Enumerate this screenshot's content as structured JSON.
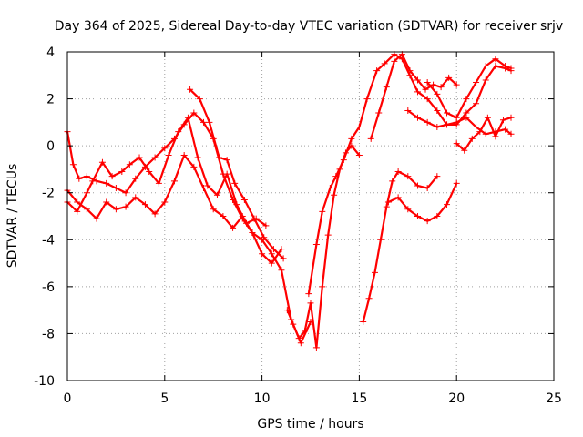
{
  "chart_data": {
    "type": "scatter",
    "title": "Day 364 of 2025, Sidereal Day-to-day VTEC variation (SDTVAR) for receiver srjv",
    "xlabel": "GPS time / hours",
    "ylabel": "SDTVAR / TECUs",
    "xlim": [
      0,
      25
    ],
    "ylim": [
      -10,
      4
    ],
    "xticks": [
      0,
      5,
      10,
      15,
      20,
      25
    ],
    "yticks": [
      -10,
      -8,
      -6,
      -4,
      -2,
      0,
      2,
      4
    ],
    "grid": true,
    "marker": "+",
    "color": "#ff0000",
    "series": [
      {
        "x": [
          0.0,
          0.3,
          0.6,
          1.0,
          1.5,
          2.0,
          2.5,
          3.0,
          3.5,
          4.0,
          4.5,
          5.0,
          5.5,
          6.0,
          6.5,
          7.0,
          7.5,
          8.0,
          8.5,
          9.0,
          9.5,
          10.0,
          10.5,
          11.0,
          11.5,
          12.0,
          12.5
        ],
        "y": [
          0.6,
          -0.8,
          -1.4,
          -1.3,
          -1.5,
          -1.6,
          -1.8,
          -2.0,
          -1.4,
          -0.9,
          -0.5,
          -0.1,
          0.3,
          0.9,
          1.4,
          1.0,
          0.3,
          -1.2,
          -2.3,
          -3.1,
          -3.7,
          -4.0,
          -4.6,
          -5.3,
          -7.4,
          -8.4,
          -7.5
        ]
      },
      {
        "x": [
          0.0,
          0.5,
          1.0,
          1.5,
          2.0,
          2.5,
          3.0,
          3.5,
          4.0,
          4.5,
          5.0,
          5.5,
          6.0,
          6.5,
          7.0,
          7.5,
          8.0,
          8.5,
          9.0,
          9.5,
          10.0,
          10.5,
          11.0
        ],
        "y": [
          -1.9,
          -2.4,
          -2.7,
          -3.1,
          -2.4,
          -2.7,
          -2.6,
          -2.2,
          -2.5,
          -2.9,
          -2.4,
          -1.5,
          -0.4,
          -0.9,
          -1.8,
          -2.7,
          -3.0,
          -3.5,
          -3.0,
          -3.7,
          -4.6,
          -5.0,
          -4.4
        ]
      },
      {
        "x": [
          0.0,
          0.5,
          1.0,
          1.3,
          1.8,
          2.3,
          2.8,
          3.2,
          3.7,
          4.2,
          4.7,
          5.2,
          5.7,
          6.2,
          6.7,
          7.2,
          7.7,
          8.2,
          8.7,
          9.2,
          9.7,
          10.2
        ],
        "y": [
          -2.4,
          -2.8,
          -2.0,
          -1.5,
          -0.7,
          -1.3,
          -1.1,
          -0.8,
          -0.5,
          -1.1,
          -1.6,
          -0.4,
          0.6,
          1.2,
          -0.5,
          -1.7,
          -2.1,
          -1.2,
          -2.5,
          -3.3,
          -3.1,
          -3.4
        ]
      },
      {
        "x": [
          6.3,
          6.8,
          7.3,
          7.8,
          8.2,
          8.6,
          9.1,
          9.6,
          10.1,
          10.6,
          11.1
        ],
        "y": [
          2.4,
          2.0,
          1.0,
          -0.5,
          -0.6,
          -1.6,
          -2.3,
          -3.1,
          -3.9,
          -4.4,
          -4.8
        ]
      },
      {
        "x": [
          11.3,
          11.6,
          11.9,
          12.2,
          12.5,
          12.8,
          13.1,
          13.4,
          13.7,
          14.0,
          14.3,
          14.6,
          15.0
        ],
        "y": [
          -7.0,
          -7.6,
          -8.2,
          -7.9,
          -6.7,
          -8.6,
          -6.0,
          -3.8,
          -2.1,
          -1.0,
          -0.3,
          0.0,
          -0.4
        ]
      },
      {
        "x": [
          12.4,
          12.8,
          13.1,
          13.5,
          13.8,
          14.2,
          14.6,
          15.0,
          15.4,
          15.9,
          16.3,
          16.8,
          17.2,
          17.6,
          18.0,
          18.5,
          19.0,
          19.5,
          20.0,
          20.5,
          21.0,
          21.5,
          22.0,
          22.5,
          22.8
        ],
        "y": [
          -6.3,
          -4.2,
          -2.8,
          -1.8,
          -1.3,
          -0.6,
          0.3,
          0.8,
          2.0,
          3.2,
          3.5,
          3.9,
          3.7,
          3.0,
          2.3,
          2.0,
          1.5,
          0.9,
          0.9,
          1.4,
          1.8,
          2.8,
          3.4,
          3.3,
          3.2
        ]
      },
      {
        "x": [
          15.2,
          15.5,
          15.8,
          16.1,
          16.4,
          16.7,
          17.0,
          17.5,
          18.0,
          18.5,
          19.0
        ],
        "y": [
          -7.5,
          -6.5,
          -5.4,
          -4.0,
          -2.6,
          -1.5,
          -1.1,
          -1.3,
          -1.7,
          -1.8,
          -1.3
        ]
      },
      {
        "x": [
          16.5,
          17.0,
          17.5,
          18.0,
          18.5,
          19.0,
          19.5,
          20.0
        ],
        "y": [
          -2.4,
          -2.2,
          -2.7,
          -3.0,
          -3.2,
          -3.0,
          -2.5,
          -1.6
        ]
      },
      {
        "x": [
          15.6,
          16.0,
          16.4,
          16.8,
          17.2,
          17.6,
          18.0,
          18.4,
          18.8,
          19.2,
          19.6,
          20.0
        ],
        "y": [
          0.3,
          1.4,
          2.5,
          3.6,
          3.9,
          3.2,
          2.8,
          2.4,
          2.6,
          2.5,
          2.9,
          2.6
        ]
      },
      {
        "x": [
          17.5,
          18.0,
          18.5,
          19.0,
          19.5,
          20.0,
          20.5,
          21.0,
          21.5,
          22.0,
          22.5,
          22.8
        ],
        "y": [
          1.5,
          1.2,
          1.0,
          0.8,
          0.9,
          1.0,
          1.2,
          0.8,
          0.5,
          0.6,
          0.7,
          0.5
        ]
      },
      {
        "x": [
          20.0,
          20.4,
          20.8,
          21.2,
          21.6,
          22.0,
          22.4,
          22.8
        ],
        "y": [
          0.1,
          -0.2,
          0.3,
          0.6,
          1.2,
          0.4,
          1.1,
          1.2
        ]
      },
      {
        "x": [
          18.5,
          19.0,
          19.5,
          20.0,
          20.5,
          21.0,
          21.5,
          22.0,
          22.5,
          22.8
        ],
        "y": [
          2.7,
          2.2,
          1.4,
          1.2,
          2.0,
          2.7,
          3.4,
          3.7,
          3.4,
          3.3
        ]
      }
    ]
  }
}
